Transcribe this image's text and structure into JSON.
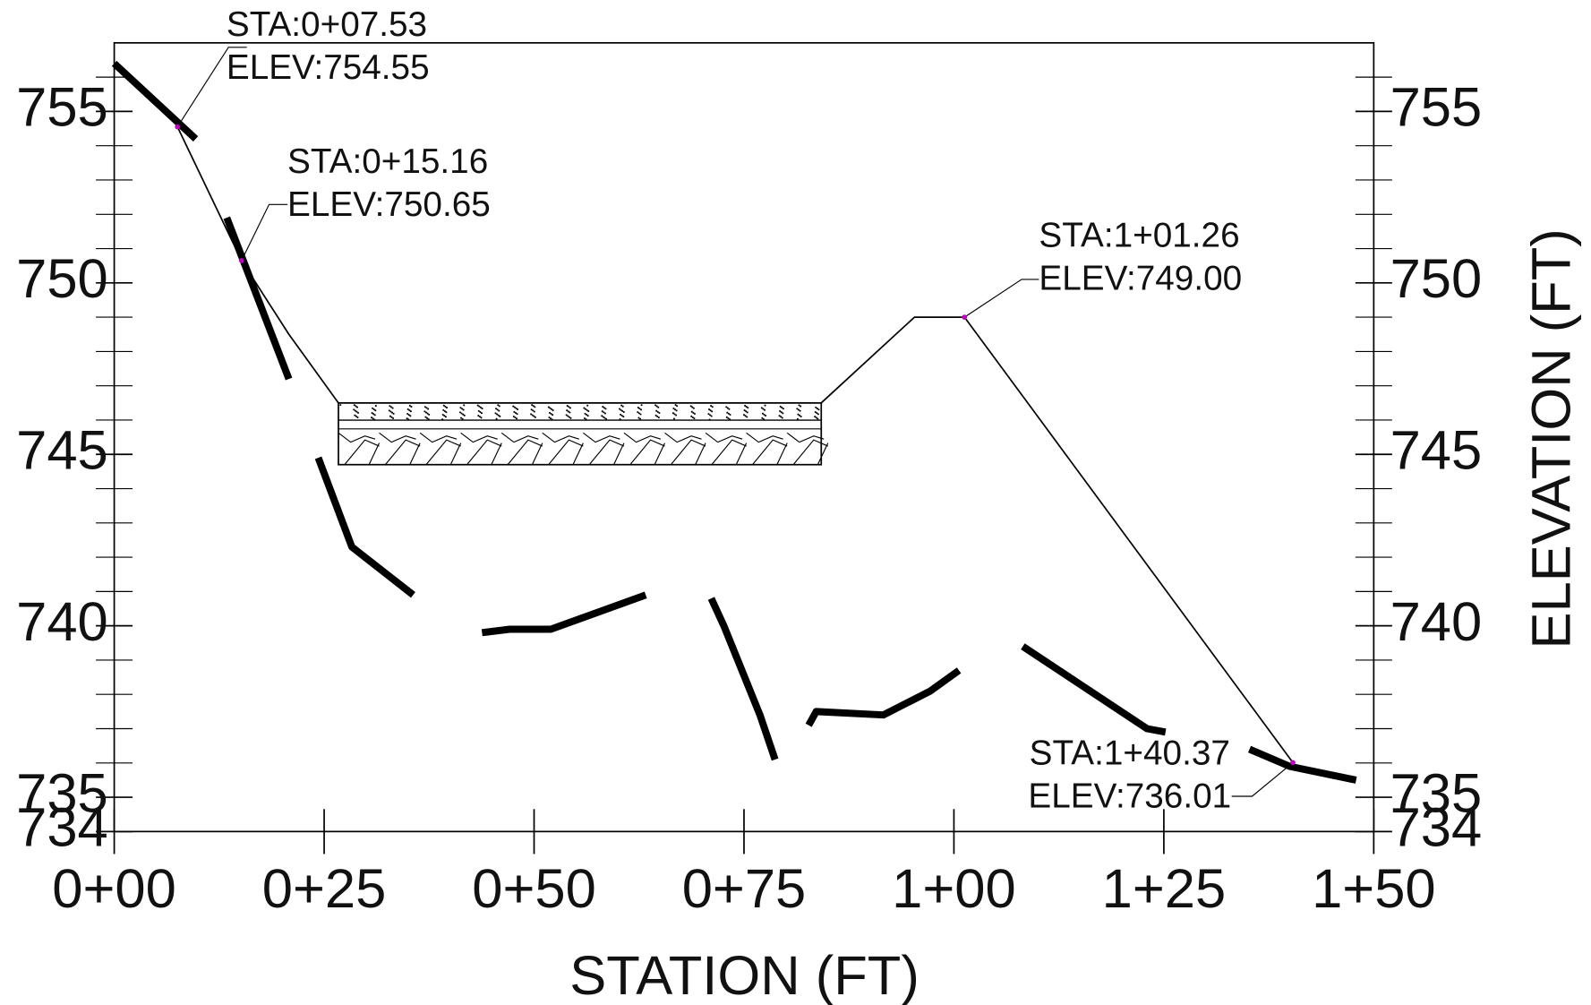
{
  "chart_data": {
    "type": "line",
    "x_label": "STATION (FT)",
    "y_label": "ELEVATION (FT)",
    "xlim": [
      0,
      150
    ],
    "xticks": [
      {
        "value": 0,
        "label": "0+00"
      },
      {
        "value": 25,
        "label": "0+25"
      },
      {
        "value": 50,
        "label": "0+50"
      },
      {
        "value": 75,
        "label": "0+75"
      },
      {
        "value": 100,
        "label": "1+00"
      },
      {
        "value": 125,
        "label": "1+25"
      },
      {
        "value": 150,
        "label": "1+50"
      }
    ],
    "ylim": [
      734,
      757
    ],
    "yticks": [
      734,
      735,
      740,
      745,
      750,
      755
    ],
    "minor_yticks": [
      736,
      737,
      738,
      739,
      741,
      742,
      743,
      744,
      746,
      747,
      748,
      749,
      751,
      752,
      753,
      754,
      756
    ],
    "series": [
      {
        "color": "#000000",
        "width": 7,
        "x": [
          0,
          9.7,
          null,
          13.4,
          20.8,
          null,
          24.3,
          28.3,
          35.6,
          null,
          43.8,
          47.1,
          52.0,
          63.3,
          null,
          71.1,
          72.6,
          76.9,
          78.7,
          null,
          82.7,
          83.6,
          91.6,
          97.2,
          100.6,
          null,
          108.2,
          123.0,
          125.2,
          null,
          135.2,
          140.0,
          147.9
        ],
        "values": [
          756.4,
          754.2,
          null,
          751.9,
          747.2,
          null,
          744.9,
          742.3,
          740.9,
          null,
          739.8,
          739.9,
          739.9,
          740.9,
          null,
          740.8,
          740.0,
          737.4,
          736.1,
          null,
          737.1,
          737.5,
          737.4,
          738.1,
          738.7,
          null,
          739.4,
          737.0,
          736.9,
          null,
          736.4,
          735.9,
          735.5
        ]
      },
      {
        "color": "#000000",
        "width": 1.5,
        "x": [
          7.53,
          15.16,
          20.8,
          26.7,
          84.2,
          95.3,
          101.26,
          140.37
        ],
        "values": [
          754.55,
          750.65,
          748.5,
          746.5,
          746.5,
          749.0,
          749.0,
          736.01
        ]
      }
    ],
    "channel": {
      "x": [
        26.7,
        84.2
      ],
      "y": [
        744.7,
        746.5
      ]
    },
    "annotations": [
      {
        "lines": [
          "STA:0+07.53",
          "ELEV:754.55"
        ],
        "x": 7.53,
        "y": 754.55
      },
      {
        "lines": [
          "STA:0+15.16",
          "ELEV:750.65"
        ],
        "x": 15.16,
        "y": 750.65
      },
      {
        "lines": [
          "STA:1+01.26",
          "ELEV:749.00"
        ],
        "x": 101.26,
        "y": 749.0
      },
      {
        "lines": [
          "STA:1+40.37",
          "ELEV:736.01"
        ],
        "x": 140.37,
        "y": 736.01
      }
    ],
    "marker_color": "#c000c0"
  }
}
